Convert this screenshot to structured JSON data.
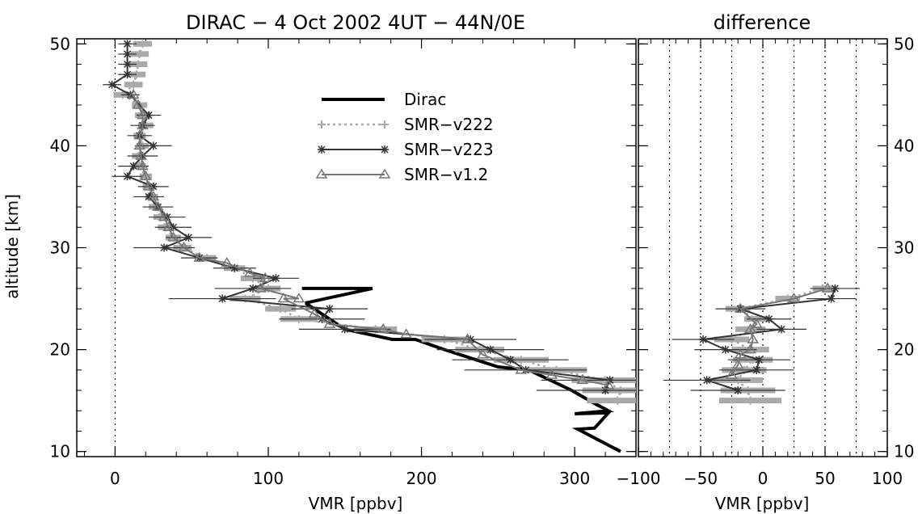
{
  "chart_data": [
    {
      "type": "line",
      "title": "DIRAC − 4 Oct 2002 4UT − 44N/0E",
      "xlabel": "VMR [ppbv]",
      "ylabel": "altitude [km]",
      "xlim": [
        -25,
        340
      ],
      "ylim": [
        9.5,
        50.5
      ],
      "xticks": [
        0,
        100,
        200,
        300
      ],
      "yticks": [
        10,
        20,
        30,
        40,
        50
      ],
      "vlines": [
        0
      ],
      "legend": {
        "position": "top-center",
        "entries": [
          "Dirac",
          "SMR−v222",
          "SMR−v223",
          "SMR−v1.2"
        ]
      },
      "series": [
        {
          "name": "Dirac",
          "color": "#000000",
          "points": [
            [
              330,
              10
            ],
            [
              302,
              12.2
            ],
            [
              313,
              12.3
            ],
            [
              322,
              13.8
            ],
            [
              300,
              13.7
            ],
            [
              322,
              14
            ],
            [
              312,
              14.8
            ],
            [
              298,
              16
            ],
            [
              270,
              18
            ],
            [
              250,
              18.3
            ],
            [
              215,
              20
            ],
            [
              196,
              21
            ],
            [
              181,
              21
            ],
            [
              150,
              22
            ],
            [
              125,
              24.5
            ],
            [
              125,
              24.6
            ],
            [
              168,
              26
            ],
            [
              122,
              26
            ]
          ]
        },
        {
          "name": "SMR−v222",
          "color": "#aaaaaa",
          "points": [
            [
              328,
              15
            ],
            [
              330,
              16
            ],
            [
              320,
              17
            ],
            [
              288,
              18
            ],
            [
              265,
              19
            ],
            [
              238,
              20
            ],
            [
              215,
              21
            ],
            [
              170,
              22
            ],
            [
              120,
              23
            ],
            [
              108,
              24
            ],
            [
              85,
              25
            ],
            [
              100,
              26
            ],
            [
              90,
              27
            ],
            [
              78,
              28
            ],
            [
              60,
              29
            ],
            [
              44,
              30
            ],
            [
              38,
              31
            ],
            [
              33,
              32
            ],
            [
              30,
              33
            ],
            [
              26,
              34
            ],
            [
              24,
              35
            ],
            [
              22,
              36
            ],
            [
              20,
              37
            ],
            [
              16,
              38
            ],
            [
              15,
              39
            ],
            [
              18,
              40
            ],
            [
              16,
              41
            ],
            [
              20,
              42
            ],
            [
              18,
              43
            ],
            [
              16,
              44
            ],
            [
              5,
              45
            ],
            [
              12,
              46
            ],
            [
              14,
              47
            ],
            [
              15,
              48
            ],
            [
              16,
              49
            ],
            [
              18,
              50
            ]
          ],
          "errors": [
            20,
            25,
            22,
            20,
            18,
            16,
            15,
            14,
            12,
            10,
            10,
            8,
            8,
            7,
            6,
            6,
            5,
            5,
            5,
            4,
            4,
            4,
            4,
            4,
            4,
            4,
            4,
            5,
            5,
            5,
            6,
            6,
            6,
            6,
            6,
            6
          ]
        },
        {
          "name": "SMR−v223",
          "color": "#333333",
          "points": [
            [
              320,
              16
            ],
            [
              323,
              17
            ],
            [
              268,
              18
            ],
            [
              258,
              19
            ],
            [
              245,
              20
            ],
            [
              232,
              21
            ],
            [
              150,
              22
            ],
            [
              135,
              23
            ],
            [
              140,
              24
            ],
            [
              70,
              25
            ],
            [
              90,
              26
            ],
            [
              105,
              27
            ],
            [
              78,
              28
            ],
            [
              55,
              29
            ],
            [
              32,
              30
            ],
            [
              48,
              31
            ],
            [
              38,
              32
            ],
            [
              34,
              33
            ],
            [
              28,
              34
            ],
            [
              22,
              35
            ],
            [
              25,
              36
            ],
            [
              8,
              37
            ],
            [
              12,
              38
            ],
            [
              18,
              39
            ],
            [
              25,
              40
            ],
            [
              16,
              41
            ],
            [
              18,
              42
            ],
            [
              22,
              43
            ],
            [
              10,
              45
            ],
            [
              -2,
              46
            ],
            [
              8,
              47
            ],
            [
              8,
              48
            ],
            [
              8,
              49
            ],
            [
              8,
              50
            ]
          ],
          "errors": [
            45,
            45,
            40,
            38,
            35,
            30,
            30,
            28,
            25,
            35,
            25,
            15,
            14,
            12,
            20,
            15,
            12,
            12,
            10,
            10,
            10,
            10,
            10,
            10,
            12,
            8,
            8,
            8,
            6,
            6,
            6,
            6,
            6,
            6
          ]
        },
        {
          "name": "SMR−v1.2",
          "color": "#777777",
          "points": [
            [
              322,
              16.5
            ],
            [
              305,
              17
            ],
            [
              285,
              17.5
            ],
            [
              265,
              18
            ],
            [
              240,
              19.5
            ],
            [
              230,
              21
            ],
            [
              190,
              21.5
            ],
            [
              175,
              22
            ],
            [
              140,
              22.5
            ],
            [
              130,
              23.5
            ],
            [
              110,
              25
            ],
            [
              120,
              25
            ],
            [
              95,
              26
            ],
            [
              98,
              27
            ],
            [
              88,
              27.5
            ],
            [
              73,
              28.5
            ],
            [
              55,
              29
            ],
            [
              45,
              30
            ],
            [
              38,
              31
            ],
            [
              35,
              32
            ],
            [
              32,
              33
            ],
            [
              28,
              34
            ],
            [
              25,
              35
            ],
            [
              22,
              36
            ],
            [
              20,
              37
            ],
            [
              18,
              38
            ],
            [
              17,
              39
            ],
            [
              16,
              40
            ],
            [
              16,
              41
            ],
            [
              18,
              42
            ],
            [
              18,
              43
            ],
            [
              15,
              44
            ],
            [
              12,
              45
            ]
          ],
          "errors": []
        }
      ]
    },
    {
      "type": "line",
      "title": "difference",
      "xlabel": "VMR [ppbv]",
      "ylabel": "",
      "xlim": [
        -100,
        100
      ],
      "ylim": [
        9.5,
        50.5
      ],
      "xticks": [
        -100,
        -50,
        0,
        50,
        100
      ],
      "yticks": [
        10,
        20,
        30,
        40,
        50
      ],
      "vlines": [
        -75,
        -50,
        -25,
        0,
        25,
        50,
        75
      ],
      "series": [
        {
          "name": "SMR−v222",
          "color": "#aaaaaa",
          "points": [
            [
              -10,
              15
            ],
            [
              -12,
              16
            ],
            [
              -20,
              17
            ],
            [
              -15,
              18
            ],
            [
              -8,
              19
            ],
            [
              -10,
              20
            ],
            [
              -25,
              21
            ],
            [
              -10,
              22
            ],
            [
              -5,
              23
            ],
            [
              -20,
              24
            ],
            [
              20,
              25
            ],
            [
              48,
              26
            ]
          ],
          "errors": [
            25,
            22,
            20,
            18,
            16,
            15,
            14,
            12,
            10,
            10,
            10,
            8
          ]
        },
        {
          "name": "SMR−v223",
          "color": "#333333",
          "points": [
            [
              -20,
              16
            ],
            [
              -45,
              17
            ],
            [
              -5,
              18
            ],
            [
              -3,
              19
            ],
            [
              -30,
              20
            ],
            [
              -48,
              21
            ],
            [
              15,
              22
            ],
            [
              5,
              23
            ],
            [
              -18,
              24
            ],
            [
              55,
              25
            ],
            [
              58,
              26
            ]
          ],
          "errors": [
            38,
            35,
            30,
            25,
            25,
            25,
            20,
            18,
            20,
            20,
            20
          ]
        },
        {
          "name": "SMR−v1.2",
          "color": "#777777",
          "points": [
            [
              -25,
              17.5
            ],
            [
              -20,
              18.5
            ],
            [
              -18,
              19.5
            ],
            [
              -10,
              20
            ],
            [
              -8,
              21
            ],
            [
              -10,
              22
            ],
            [
              -5,
              22.5
            ],
            [
              -18,
              24
            ],
            [
              25,
              25
            ],
            [
              52,
              26
            ]
          ],
          "errors": []
        }
      ]
    }
  ]
}
